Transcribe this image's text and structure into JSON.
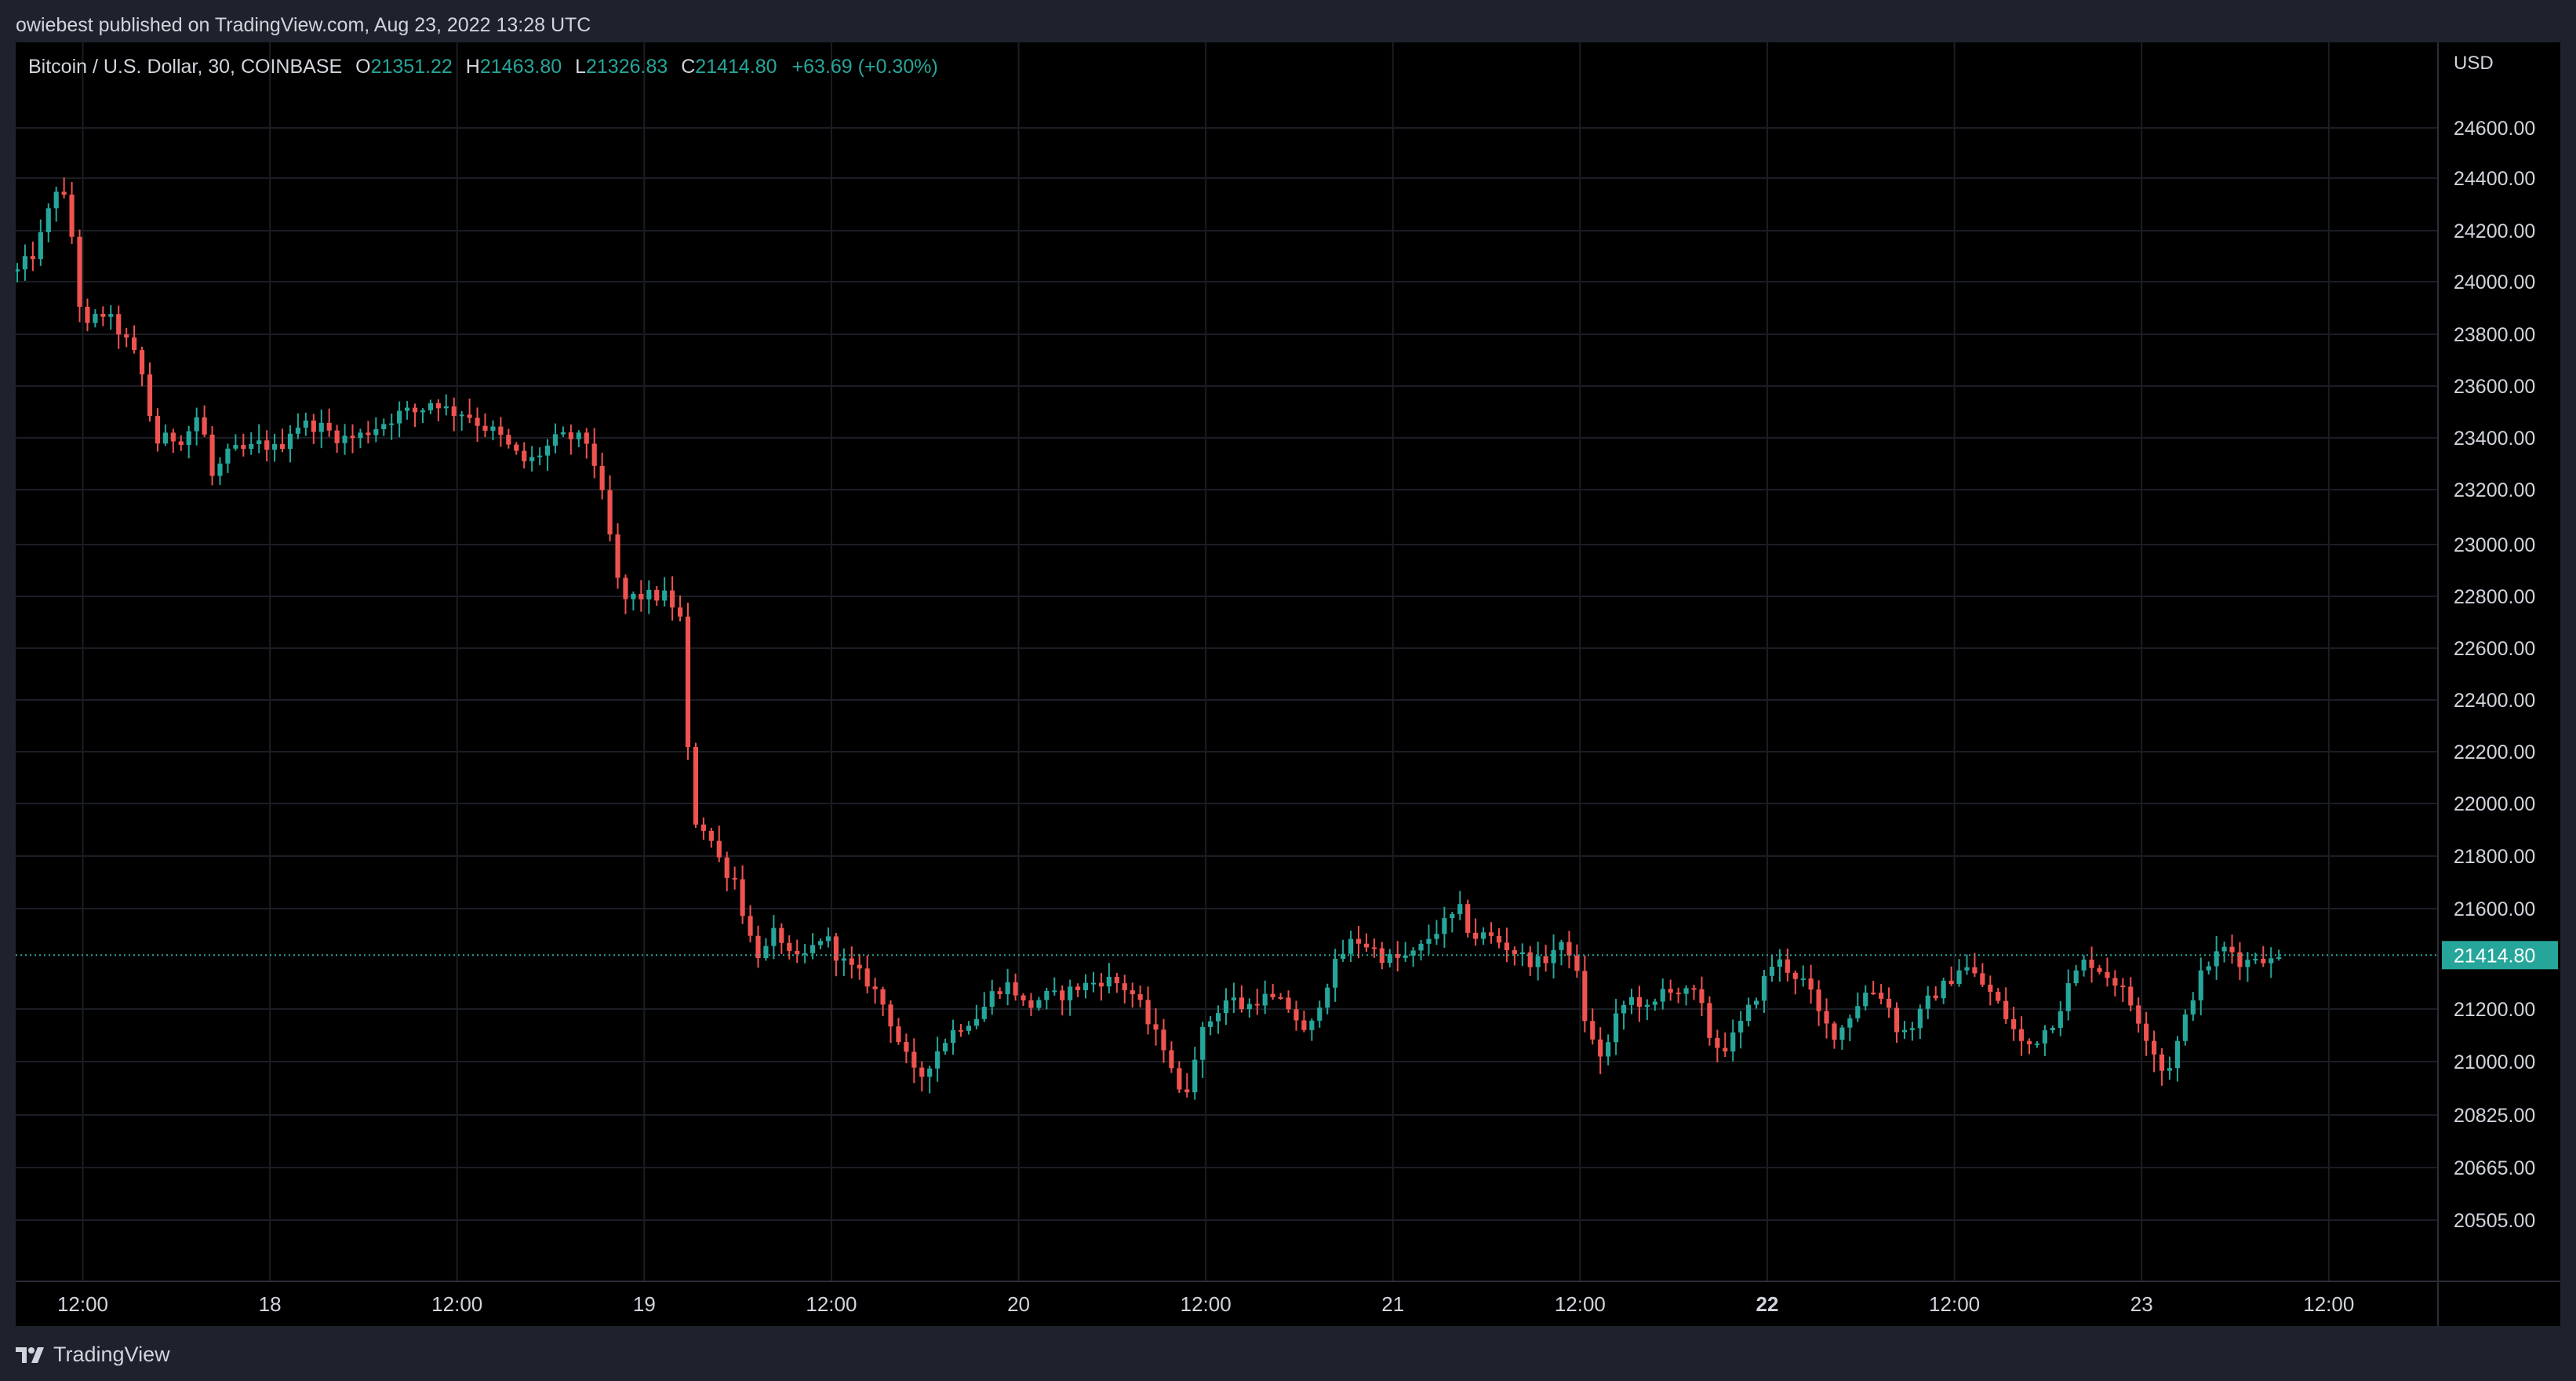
{
  "caption": "owiebest published on TradingView.com, Aug 23, 2022 13:28 UTC",
  "legend": {
    "symbol": "Bitcoin / U.S. Dollar, 30, COINBASE",
    "o_label": "O",
    "o_value": "21351.22",
    "h_label": "H",
    "h_value": "21463.80",
    "l_label": "L",
    "l_value": "21326.83",
    "c_label": "C",
    "c_value": "21414.80",
    "change": "+63.69 (+0.30%)"
  },
  "footer": {
    "brand": "TradingView"
  },
  "colors": {
    "up": "#26a69a",
    "down": "#ef5350",
    "background": "#000000",
    "frame": "#1e222d",
    "grid": "#1a1d24",
    "text": "#d1d4dc"
  },
  "chart_data": {
    "type": "candlestick",
    "title": "Bitcoin / U.S. Dollar, 30, COINBASE",
    "interval_minutes": 30,
    "currency_label": "USD",
    "grid": true,
    "last_price": 21414.8,
    "last_price_label": "21414.80",
    "y_ticks": [
      {
        "value": 24600,
        "label": "24600.00"
      },
      {
        "value": 24400,
        "label": "24400.00"
      },
      {
        "value": 24200,
        "label": "24200.00"
      },
      {
        "value": 24000,
        "label": "24000.00"
      },
      {
        "value": 23800,
        "label": "23800.00"
      },
      {
        "value": 23600,
        "label": "23600.00"
      },
      {
        "value": 23400,
        "label": "23400.00"
      },
      {
        "value": 23200,
        "label": "23200.00"
      },
      {
        "value": 23000,
        "label": "23000.00"
      },
      {
        "value": 22800,
        "label": "22800.00"
      },
      {
        "value": 22600,
        "label": "22600.00"
      },
      {
        "value": 22400,
        "label": "22400.00"
      },
      {
        "value": 22200,
        "label": "22200.00"
      },
      {
        "value": 22000,
        "label": "22000.00"
      },
      {
        "value": 21800,
        "label": "21800.00"
      },
      {
        "value": 21600,
        "label": "21600.00"
      },
      {
        "value": 21200,
        "label": "21200.00"
      },
      {
        "value": 21000,
        "label": "21000.00"
      },
      {
        "value": 20825,
        "label": "20825.00"
      },
      {
        "value": 20665,
        "label": "20665.00"
      },
      {
        "value": 20505,
        "label": "20505.00"
      }
    ],
    "x_ticks": [
      {
        "hour": 12,
        "label": "12:00",
        "bold": false
      },
      {
        "hour": 24,
        "label": "18",
        "bold": false
      },
      {
        "hour": 36,
        "label": "12:00",
        "bold": false
      },
      {
        "hour": 48,
        "label": "19",
        "bold": false
      },
      {
        "hour": 60,
        "label": "12:00",
        "bold": false
      },
      {
        "hour": 72,
        "label": "20",
        "bold": false
      },
      {
        "hour": 84,
        "label": "12:00",
        "bold": false
      },
      {
        "hour": 96,
        "label": "21",
        "bold": false
      },
      {
        "hour": 108,
        "label": "12:00",
        "bold": false
      },
      {
        "hour": 120,
        "label": "22",
        "bold": true
      },
      {
        "hour": 132,
        "label": "12:00",
        "bold": false
      },
      {
        "hour": 144,
        "label": "23",
        "bold": false
      },
      {
        "hour": 156,
        "label": "12:00",
        "bold": false
      }
    ],
    "x_range_hours": [
      7.7,
      163
    ],
    "close_anchors": [
      [
        7.8,
        24040
      ],
      [
        9.0,
        24120
      ],
      [
        10.5,
        24400
      ],
      [
        11.4,
        24150
      ],
      [
        12.0,
        23800
      ],
      [
        12.8,
        23860
      ],
      [
        13.4,
        23880
      ],
      [
        14.5,
        23800
      ],
      [
        15.5,
        23700
      ],
      [
        16.0,
        23600
      ],
      [
        16.6,
        23380
      ],
      [
        17.5,
        23400
      ],
      [
        18.5,
        23400
      ],
      [
        19.5,
        23500
      ],
      [
        20.3,
        23250
      ],
      [
        21.5,
        23350
      ],
      [
        22.5,
        23350
      ],
      [
        23.5,
        23380
      ],
      [
        24.5,
        23350
      ],
      [
        25.5,
        23450
      ],
      [
        27.0,
        23450
      ],
      [
        28.5,
        23400
      ],
      [
        29.5,
        23400
      ],
      [
        31.0,
        23450
      ],
      [
        32.5,
        23500
      ],
      [
        33.5,
        23500
      ],
      [
        34.5,
        23550
      ],
      [
        35.5,
        23500
      ],
      [
        36.5,
        23500
      ],
      [
        37.5,
        23450
      ],
      [
        38.5,
        23420
      ],
      [
        39.5,
        23350
      ],
      [
        40.5,
        23300
      ],
      [
        41.5,
        23350
      ],
      [
        42.5,
        23400
      ],
      [
        43.5,
        23400
      ],
      [
        44.5,
        23380
      ],
      [
        45.2,
        23200
      ],
      [
        46.0,
        22970
      ],
      [
        46.5,
        22780
      ],
      [
        47.5,
        22800
      ],
      [
        48.5,
        22800
      ],
      [
        49.5,
        22800
      ],
      [
        50.4,
        22700
      ],
      [
        51.0,
        21950
      ],
      [
        52.0,
        21900
      ],
      [
        53.0,
        21760
      ],
      [
        54.0,
        21700
      ],
      [
        54.5,
        21520
      ],
      [
        55.5,
        21400
      ],
      [
        56.5,
        21520
      ],
      [
        57.5,
        21380
      ],
      [
        58.5,
        21420
      ],
      [
        59.5,
        21500
      ],
      [
        60.5,
        21400
      ],
      [
        61.5,
        21350
      ],
      [
        62.5,
        21300
      ],
      [
        63.5,
        21200
      ],
      [
        64.5,
        21050
      ],
      [
        65.5,
        20930
      ],
      [
        66.5,
        21020
      ],
      [
        67.5,
        21100
      ],
      [
        68.5,
        21150
      ],
      [
        69.5,
        21180
      ],
      [
        70.5,
        21280
      ],
      [
        71.5,
        21300
      ],
      [
        72.5,
        21200
      ],
      [
        73.5,
        21250
      ],
      [
        74.5,
        21250
      ],
      [
        75.5,
        21280
      ],
      [
        76.5,
        21300
      ],
      [
        77.5,
        21320
      ],
      [
        78.5,
        21300
      ],
      [
        79.5,
        21250
      ],
      [
        80.5,
        21120
      ],
      [
        81.5,
        21050
      ],
      [
        82.5,
        20850
      ],
      [
        83.5,
        21080
      ],
      [
        84.5,
        21180
      ],
      [
        85.5,
        21250
      ],
      [
        86.5,
        21200
      ],
      [
        87.5,
        21250
      ],
      [
        88.5,
        21230
      ],
      [
        89.5,
        21200
      ],
      [
        90.5,
        21080
      ],
      [
        91.5,
        21270
      ],
      [
        92.5,
        21400
      ],
      [
        93.5,
        21480
      ],
      [
        94.5,
        21450
      ],
      [
        95.5,
        21400
      ],
      [
        96.5,
        21400
      ],
      [
        97.5,
        21420
      ],
      [
        98.5,
        21500
      ],
      [
        99.5,
        21550
      ],
      [
        100.5,
        21600
      ],
      [
        101.0,
        21470
      ],
      [
        101.5,
        21500
      ],
      [
        102.5,
        21480
      ],
      [
        103.5,
        21440
      ],
      [
        104.5,
        21400
      ],
      [
        105.5,
        21380
      ],
      [
        106.5,
        21450
      ],
      [
        107.5,
        21430
      ],
      [
        108.5,
        21100
      ],
      [
        109.5,
        21010
      ],
      [
        110.5,
        21200
      ],
      [
        111.5,
        21250
      ],
      [
        112.5,
        21180
      ],
      [
        113.5,
        21300
      ],
      [
        114.5,
        21260
      ],
      [
        115.5,
        21260
      ],
      [
        116.5,
        21060
      ],
      [
        117.5,
        21060
      ],
      [
        118.5,
        21160
      ],
      [
        119.5,
        21280
      ],
      [
        120.5,
        21400
      ],
      [
        121.5,
        21350
      ],
      [
        122.5,
        21300
      ],
      [
        123.5,
        21150
      ],
      [
        124.5,
        21100
      ],
      [
        125.5,
        21200
      ],
      [
        126.5,
        21280
      ],
      [
        127.5,
        21250
      ],
      [
        128.5,
        21100
      ],
      [
        129.5,
        21150
      ],
      [
        130.5,
        21250
      ],
      [
        131.5,
        21300
      ],
      [
        132.5,
        21380
      ],
      [
        133.5,
        21320
      ],
      [
        134.5,
        21250
      ],
      [
        135.5,
        21150
      ],
      [
        136.5,
        21050
      ],
      [
        137.5,
        21100
      ],
      [
        138.5,
        21170
      ],
      [
        139.5,
        21320
      ],
      [
        140.5,
        21400
      ],
      [
        141.5,
        21350
      ],
      [
        142.5,
        21300
      ],
      [
        143.5,
        21200
      ],
      [
        144.5,
        21080
      ],
      [
        145.5,
        20950
      ],
      [
        146.5,
        21100
      ],
      [
        147.5,
        21300
      ],
      [
        148.5,
        21400
      ],
      [
        149.5,
        21450
      ],
      [
        150.5,
        21380
      ],
      [
        151.5,
        21420
      ],
      [
        152.5,
        21380
      ],
      [
        153.0,
        21414
      ]
    ]
  }
}
